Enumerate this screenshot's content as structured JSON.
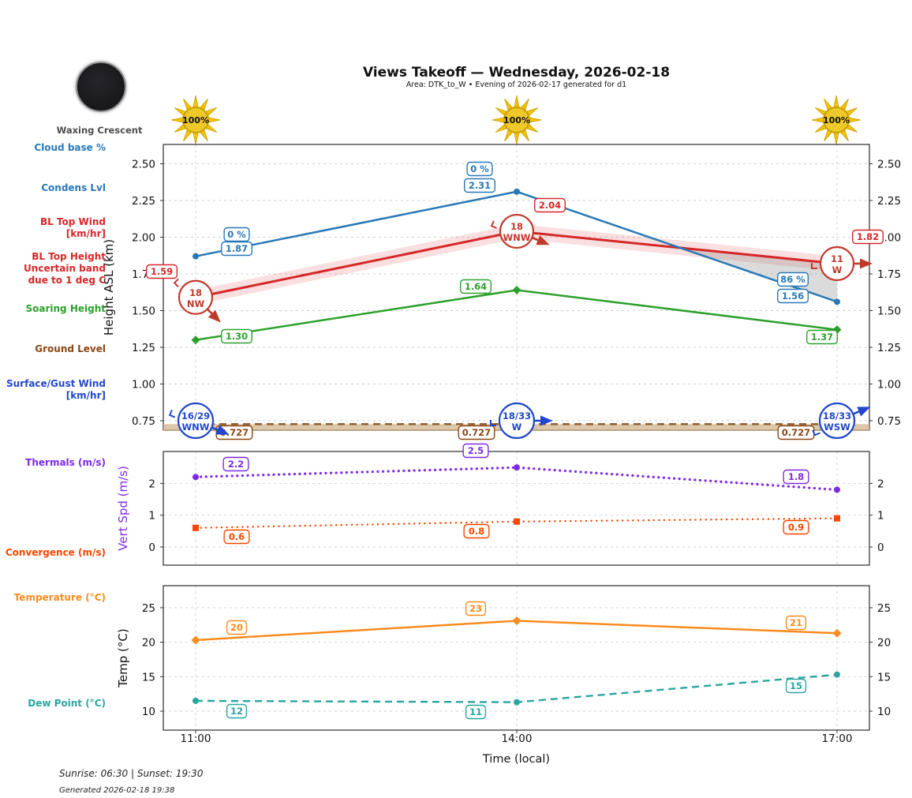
{
  "header": {
    "title": "Views Takeoff — Wednesday, 2026-02-18",
    "subtitle": "Area: DTK_to_W • Evening of 2026-02-17 generated for d1"
  },
  "moon": {
    "label": "Waxing Crescent"
  },
  "suns": [
    "100%",
    "100%",
    "100%"
  ],
  "side_labels": {
    "cloud_base": {
      "text": "Cloud base %",
      "color": "#2878b8"
    },
    "condens": {
      "text": "Condens Lvl",
      "color": "#2878b8"
    },
    "bl_top_wind": {
      "text": "BL Top Wind\n[km/hr]",
      "color": "#d62728"
    },
    "bl_top_height": {
      "text": "BL Top Height\nUncertain band\ndue to 1 deg C",
      "color": "#d62728"
    },
    "soaring": {
      "text": "Soaring Height",
      "color": "#2ca02c"
    },
    "ground": {
      "text": "Ground Level",
      "color": "#8b4513"
    },
    "surface_wind": {
      "text": "Surface/Gust Wind\n[km/hr]",
      "color": "#2247cc"
    },
    "thermals": {
      "text": "Thermals (m/s)",
      "color": "#7d2ae8"
    },
    "convergence": {
      "text": "Convergence (m/s)",
      "color": "#ff4500"
    },
    "temperature": {
      "text": "Temperature (°C)",
      "color": "#fb8b1e"
    },
    "dew_point": {
      "text": "Dew Point (°C)",
      "color": "#2aa5a0"
    }
  },
  "x_axis": {
    "ticks": [
      "11:00",
      "14:00",
      "17:00"
    ],
    "label": "Time (local)"
  },
  "footer": {
    "sun_times": "Sunrise: 06:30 | Sunset: 19:30",
    "generated": "Generated 2026-02-18 19:38"
  },
  "chart_data": [
    {
      "id": "heights",
      "type": "line",
      "title": "",
      "ylabel": "Height ASL (km)",
      "ylabel_color": "#111111",
      "x": [
        "11:00",
        "14:00",
        "17:00"
      ],
      "yticks": [
        0.75,
        1.0,
        1.25,
        1.5,
        1.75,
        2.0,
        2.25,
        2.5
      ],
      "ylim": [
        0.68,
        2.63
      ],
      "series": [
        {
          "id": "condens",
          "name": "Condens Lvl / Cloud base %",
          "color": "#2878b8",
          "style": "solid",
          "marker": "circle",
          "values": [
            1.87,
            2.31,
            1.56
          ],
          "point_labels": [
            "1.87",
            "2.31",
            "1.56"
          ],
          "pct_labels": [
            "0 %",
            "0 %",
            "86 %"
          ]
        },
        {
          "id": "bltop",
          "name": "BL Top Height",
          "color": "#d62728",
          "style": "solid",
          "marker": "none",
          "values": [
            1.59,
            2.04,
            1.82
          ],
          "point_labels": [
            "1.59",
            "2.04",
            "1.82"
          ],
          "uncertain_band_km": 0.05
        },
        {
          "id": "soaring",
          "name": "Soaring Height",
          "color": "#2ca02c",
          "style": "solid",
          "marker": "diamond",
          "values": [
            1.3,
            1.64,
            1.37
          ],
          "point_labels": [
            "1.30",
            "1.64",
            "1.37"
          ]
        },
        {
          "id": "ground",
          "name": "Ground Level",
          "color": "#8b5a2b",
          "style": "dashed",
          "marker": "none",
          "values": [
            0.727,
            0.727,
            0.727
          ],
          "point_labels": [
            "0.727",
            "0.727",
            "0.727"
          ],
          "band_fill": "#d2b48c"
        }
      ],
      "bl_top_wind": [
        {
          "speed": "18",
          "dir": "NW"
        },
        {
          "speed": "18",
          "dir": "WNW"
        },
        {
          "speed": "11",
          "dir": "W"
        }
      ],
      "surface_gust_wind": [
        {
          "speed": "16/29",
          "dir": "WNW"
        },
        {
          "speed": "18/33",
          "dir": "W"
        },
        {
          "speed": "18/33",
          "dir": "WSW"
        }
      ],
      "wind_circle_colors": {
        "bl_top": "#c0392b",
        "surface": "#2247cc"
      }
    },
    {
      "id": "vertspd",
      "type": "line",
      "ylabel": "Vert Spd (m/s)",
      "ylabel_color": "#7d2ae8",
      "x": [
        "11:00",
        "14:00",
        "17:00"
      ],
      "yticks": [
        0,
        1,
        2
      ],
      "ylim": [
        -0.6,
        3.0
      ],
      "series": [
        {
          "id": "thermals",
          "name": "Thermals",
          "color": "#7d2ae8",
          "style": "dotted",
          "marker": "circle",
          "values": [
            2.2,
            2.5,
            1.8
          ],
          "point_labels": [
            "2.2",
            "2.5",
            "1.8"
          ]
        },
        {
          "id": "convergence",
          "name": "Convergence",
          "color": "#ff4500",
          "style": "dotted",
          "marker": "square",
          "values": [
            0.6,
            0.8,
            0.9
          ],
          "point_labels": [
            "0.6",
            "0.8",
            "0.9"
          ]
        }
      ]
    },
    {
      "id": "temp",
      "type": "line",
      "ylabel": "Temp (°C)",
      "ylabel_color": "#111111",
      "x": [
        "11:00",
        "14:00",
        "17:00"
      ],
      "yticks": [
        10,
        15,
        20,
        25
      ],
      "ylim": [
        7.3,
        28.2
      ],
      "series": [
        {
          "id": "temperature",
          "name": "Temperature",
          "color": "#fb8b1e",
          "style": "solid",
          "marker": "diamond",
          "values": [
            20.3,
            23.1,
            21.3
          ],
          "point_labels": [
            "20",
            "23",
            "21"
          ]
        },
        {
          "id": "dew",
          "name": "Dew Point",
          "color": "#2aa5a0",
          "style": "dashed",
          "marker": "circle",
          "values": [
            11.5,
            11.3,
            15.3
          ],
          "point_labels": [
            "12",
            "11",
            "15"
          ]
        }
      ]
    }
  ]
}
